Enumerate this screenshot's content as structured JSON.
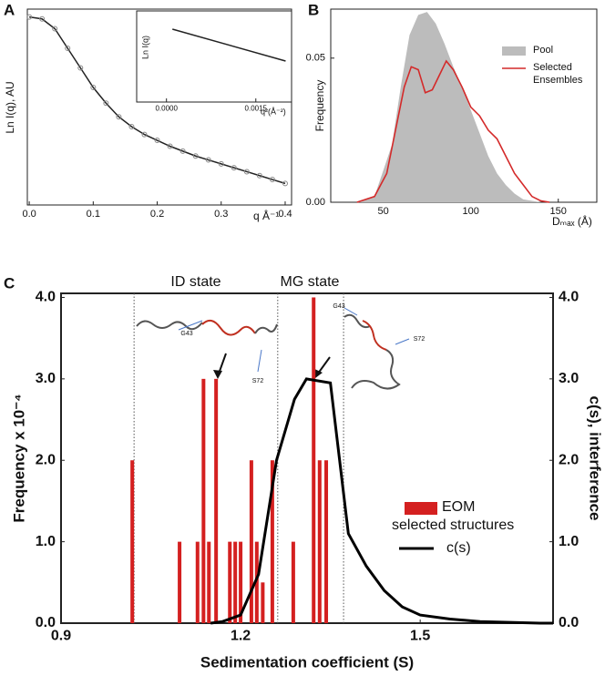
{
  "chart_data": [
    {
      "type": "line",
      "panel": "A",
      "xlabel": "q Å⁻¹",
      "ylabel": "Ln I(q), AU",
      "xlim": [
        -0.003,
        0.41
      ],
      "xticks": [
        {
          "value": 0,
          "label": "0.0"
        },
        0.1,
        0.2,
        0.3,
        0.4
      ],
      "ylim": [
        0,
        100
      ],
      "color": "#222222",
      "marker": "open-circle",
      "x": [
        0,
        0.02,
        0.04,
        0.06,
        0.08,
        0.1,
        0.12,
        0.14,
        0.16,
        0.18,
        0.2,
        0.22,
        0.24,
        0.26,
        0.28,
        0.3,
        0.32,
        0.34,
        0.36,
        0.38,
        0.4
      ],
      "values": [
        96,
        95,
        90,
        80,
        70,
        60,
        52,
        45,
        40,
        36,
        33,
        30,
        27.5,
        25,
        23,
        21,
        19,
        17,
        15,
        13,
        11
      ]
    },
    {
      "type": "line",
      "xlabel": "q²(Å⁻²)",
      "ylabel": "Ln I(q)",
      "xlim": [
        -0.0005,
        0.0021
      ],
      "xticks": [
        {
          "value": 0,
          "label": "0.0000"
        },
        0.0015
      ],
      "ylim": [
        0,
        100
      ],
      "color": "#222222",
      "x": [
        0.0001,
        0.002
      ],
      "values": [
        80,
        45
      ]
    },
    {
      "type": "area",
      "panel": "B",
      "xlabel": "Dₘₐₓ (Å)",
      "ylabel": "Frequency",
      "xlim": [
        20,
        172
      ],
      "xticks": [
        50,
        100,
        150
      ],
      "ylim": [
        0,
        0.067
      ],
      "yticks": [
        {
          "value": 0,
          "label": "0.00"
        },
        0.05
      ],
      "legend": "upper right",
      "series": [
        {
          "name": "Pool",
          "kind": "area",
          "color": "#bcbcbc",
          "x": [
            35,
            45,
            55,
            60,
            65,
            70,
            75,
            80,
            85,
            90,
            95,
            100,
            105,
            110,
            115,
            120,
            125,
            130,
            140
          ],
          "values": [
            0,
            0.002,
            0.02,
            0.04,
            0.058,
            0.065,
            0.066,
            0.062,
            0.055,
            0.047,
            0.04,
            0.032,
            0.024,
            0.016,
            0.01,
            0.006,
            0.003,
            0.001,
            0
          ]
        },
        {
          "name": "Selected Ensembles",
          "kind": "line",
          "color": "#d42a2a",
          "x": [
            35,
            45,
            52,
            57,
            62,
            66,
            70,
            74,
            78,
            82,
            86,
            90,
            95,
            100,
            105,
            110,
            115,
            120,
            125,
            130,
            135,
            140,
            145
          ],
          "values": [
            0,
            0.002,
            0.01,
            0.025,
            0.04,
            0.047,
            0.046,
            0.038,
            0.039,
            0.044,
            0.049,
            0.046,
            0.04,
            0.033,
            0.03,
            0.025,
            0.022,
            0.016,
            0.01,
            0.006,
            0.002,
            0.0005,
            0
          ]
        }
      ]
    },
    {
      "type": "bar",
      "panel": "C",
      "xlabel": "Sedimentation coefficient (S)",
      "ylabel": "Frequency x 10⁻⁴",
      "y2label": "c(s), interference",
      "xlim": [
        0.9,
        1.722
      ],
      "xticks": [
        0.9,
        1.2,
        1.5
      ],
      "ylim": [
        0,
        4.05
      ],
      "yticks": [
        {
          "value": 0,
          "label": "0.0"
        },
        {
          "value": 1,
          "label": "1.0"
        },
        {
          "value": 2,
          "label": "2.0"
        },
        {
          "value": 3,
          "label": "3.0"
        },
        {
          "value": 4,
          "label": "4.0"
        }
      ],
      "y2lim": [
        0,
        4.05
      ],
      "y2ticks": [
        {
          "value": 0,
          "label": "0.0"
        },
        {
          "value": 1,
          "label": "1.0"
        },
        {
          "value": 2,
          "label": "2.0"
        },
        {
          "value": 3,
          "label": "3.0"
        },
        {
          "value": 4,
          "label": "4.0"
        }
      ],
      "vlines": [
        1.022,
        1.262,
        1.372
      ],
      "legend": "lower right",
      "annotations": [
        "ID state",
        "MG state",
        "G43",
        "S72",
        "G43",
        "S72"
      ],
      "series": [
        {
          "name": "EOM selected structures",
          "kind": "bar",
          "color": "#d42020",
          "x": [
            1.019,
            1.098,
            1.128,
            1.138,
            1.147,
            1.159,
            1.182,
            1.191,
            1.2,
            1.218,
            1.227,
            1.237,
            1.253,
            1.288,
            1.322,
            1.332,
            1.343
          ],
          "values": [
            2,
            1,
            1,
            3,
            1,
            3,
            1,
            1,
            1,
            2,
            1,
            0.5,
            2,
            1,
            4,
            2,
            2
          ]
        },
        {
          "name": "c(s)",
          "kind": "line",
          "axis": "y2",
          "color": "#000000",
          "x": [
            1.15,
            1.17,
            1.2,
            1.23,
            1.26,
            1.29,
            1.31,
            1.35,
            1.38,
            1.41,
            1.44,
            1.47,
            1.5,
            1.55,
            1.6,
            1.7,
            1.722
          ],
          "values": [
            0,
            0.02,
            0.1,
            0.6,
            2.0,
            2.75,
            3.0,
            2.95,
            1.1,
            0.7,
            0.4,
            0.2,
            0.1,
            0.05,
            0.02,
            0,
            0
          ]
        }
      ]
    }
  ]
}
